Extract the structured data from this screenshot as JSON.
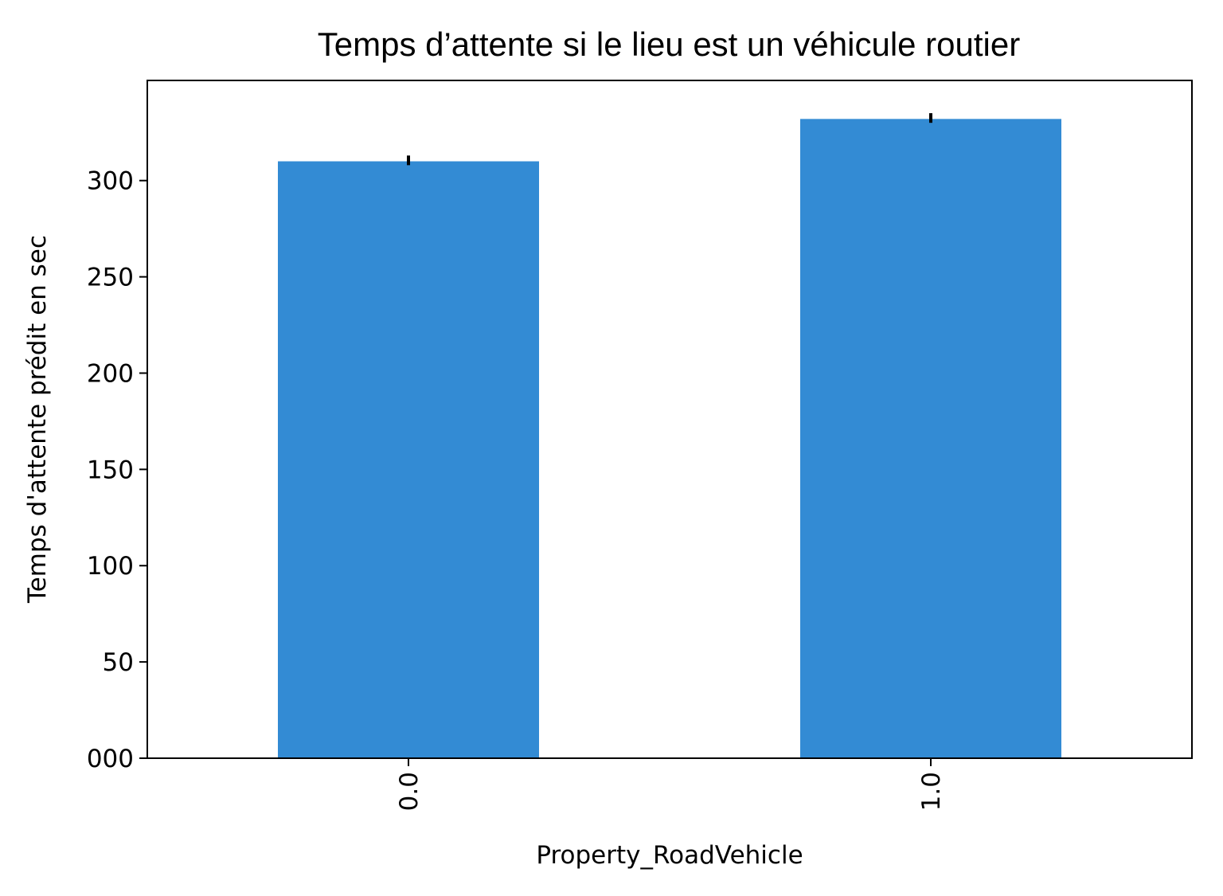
{
  "chart_data": {
    "type": "bar",
    "title": "Temps d’attente si le lieu est un véhicule routier",
    "xlabel": "Property_RoadVehicle",
    "ylabel": "Temps d'attente prédit en sec",
    "categories": [
      "0.0",
      "1.0"
    ],
    "values": [
      310,
      332
    ],
    "error_bars": [
      {
        "low": 308,
        "high": 313
      },
      {
        "low": 330,
        "high": 335
      }
    ],
    "ylim": [
      0,
      352
    ],
    "yticks": [
      0,
      50,
      100,
      150,
      200,
      250,
      300
    ],
    "ytick_labels": [
      "000",
      "50",
      "100",
      "150",
      "200",
      "250",
      "300"
    ],
    "bar_color": "#338bd4",
    "error_color": "#000000",
    "grid": false,
    "legend": "none",
    "xtick_rotation": "vertical"
  }
}
